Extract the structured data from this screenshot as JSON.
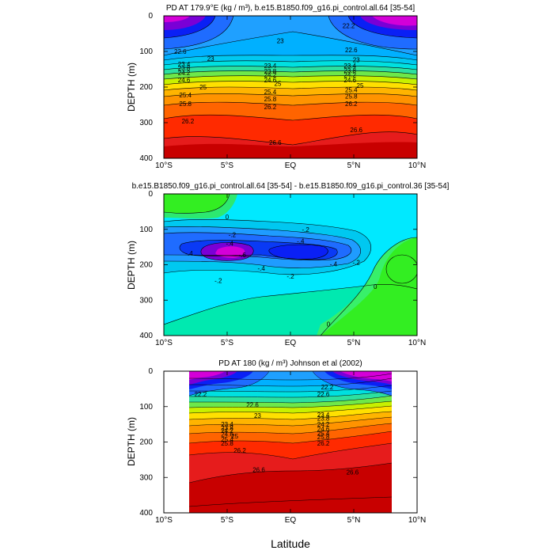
{
  "figure": {
    "xlabel": "Latitude",
    "colors": {
      "violet": "#7a00d6",
      "magenta": "#d400d8",
      "blue_dark": "#0a20f5",
      "blue": "#1f6cff",
      "cyan": "#00e9ff",
      "orange": "#ff9300",
      "red": "#e61c1c",
      "dark_red": "#c80000",
      "green": "#33ee22"
    }
  },
  "chart_data": [
    {
      "type": "contour",
      "title": "PD AT 179.9°E (kg / m³), b.e15.B1850.f09_g16.pi_control.all.64 [35-54]",
      "xlabel": "",
      "ylabel": "DEPTH (m)",
      "x_ticks": [
        "10°S",
        "5°S",
        "EQ",
        "5°N",
        "10°N"
      ],
      "x_tick_values": [
        -10,
        -5,
        0,
        5,
        10
      ],
      "y_ticks": [
        "0",
        "100",
        "200",
        "300",
        "400"
      ],
      "y_tick_values": [
        0,
        100,
        200,
        300,
        400
      ],
      "xlim": [
        -10,
        10
      ],
      "ylim": [
        400,
        0
      ],
      "x_data_extent": [
        -10,
        10
      ],
      "contour_labels": [
        {
          "text": "23",
          "x": -0.8,
          "y": 70
        },
        {
          "text": "22.6",
          "x": -8.7,
          "y": 100
        },
        {
          "text": "23",
          "x": -6.3,
          "y": 120
        },
        {
          "text": "23.4",
          "x": -8.4,
          "y": 135
        },
        {
          "text": "23.8",
          "x": -8.4,
          "y": 147
        },
        {
          "text": "24.2",
          "x": -8.4,
          "y": 160
        },
        {
          "text": "24.6",
          "x": -8.4,
          "y": 180
        },
        {
          "text": "25",
          "x": -6.9,
          "y": 200
        },
        {
          "text": "25.4",
          "x": -8.3,
          "y": 222
        },
        {
          "text": "25.8",
          "x": -8.3,
          "y": 247
        },
        {
          "text": "26.2",
          "x": -8.1,
          "y": 295
        },
        {
          "text": "23.4",
          "x": -1.6,
          "y": 140
        },
        {
          "text": "23.8",
          "x": -1.6,
          "y": 155
        },
        {
          "text": "24.2",
          "x": -1.6,
          "y": 165
        },
        {
          "text": "24.6",
          "x": -1.6,
          "y": 180
        },
        {
          "text": "25",
          "x": -1.0,
          "y": 190
        },
        {
          "text": "25.4",
          "x": -1.6,
          "y": 213
        },
        {
          "text": "25.8",
          "x": -1.6,
          "y": 233
        },
        {
          "text": "26.2",
          "x": -1.6,
          "y": 255
        },
        {
          "text": "26.6",
          "x": -1.2,
          "y": 355
        },
        {
          "text": "22.6",
          "x": 4.8,
          "y": 95
        },
        {
          "text": "23",
          "x": 5.2,
          "y": 123
        },
        {
          "text": "23.4",
          "x": 4.7,
          "y": 140
        },
        {
          "text": "23.8",
          "x": 4.7,
          "y": 153
        },
        {
          "text": "24.2",
          "x": 4.7,
          "y": 165
        },
        {
          "text": "24.6",
          "x": 4.7,
          "y": 180
        },
        {
          "text": "25",
          "x": 5.5,
          "y": 195
        },
        {
          "text": "25.4",
          "x": 4.8,
          "y": 208
        },
        {
          "text": "25.8",
          "x": 4.8,
          "y": 225
        },
        {
          "text": "26.2",
          "x": 4.8,
          "y": 247
        },
        {
          "text": "26.6",
          "x": 5.2,
          "y": 320
        },
        {
          "text": "22.2",
          "x": 4.6,
          "y": 28
        }
      ]
    },
    {
      "type": "contour",
      "title": "b.e15.B1850.f09_g16.pi_control.all.64 [35-54] - b.e15.B1850.f09_g16.pi_control.36 [35-54]",
      "xlabel": "",
      "ylabel": "DEPTH (m)",
      "x_ticks": [
        "10°S",
        "5°S",
        "EQ",
        "5°N",
        "10°N"
      ],
      "x_tick_values": [
        -10,
        -5,
        0,
        5,
        10
      ],
      "y_ticks": [
        "0",
        "100",
        "200",
        "300",
        "400"
      ],
      "y_tick_values": [
        0,
        100,
        200,
        300,
        400
      ],
      "xlim": [
        -10,
        10
      ],
      "ylim": [
        400,
        0
      ],
      "x_data_extent": [
        -10,
        10
      ],
      "contour_labels": [
        {
          "text": "0",
          "x": -5.0,
          "y": 65
        },
        {
          "text": "-.2",
          "x": -4.6,
          "y": 115
        },
        {
          "text": "-.2",
          "x": 1.2,
          "y": 100
        },
        {
          "text": "-.4",
          "x": -4.8,
          "y": 140
        },
        {
          "text": "-.4",
          "x": 0.8,
          "y": 133
        },
        {
          "text": "-.6",
          "x": -3.8,
          "y": 172
        },
        {
          "text": "-.4",
          "x": -8.0,
          "y": 168
        },
        {
          "text": "-.4",
          "x": -2.3,
          "y": 210
        },
        {
          "text": "-.4",
          "x": 3.4,
          "y": 198
        },
        {
          "text": "-.2",
          "x": 5.2,
          "y": 193
        },
        {
          "text": "-.2",
          "x": -5.7,
          "y": 245
        },
        {
          "text": "-.2",
          "x": 0.0,
          "y": 232
        },
        {
          "text": "0",
          "x": 6.7,
          "y": 262
        },
        {
          "text": "0",
          "x": 3.0,
          "y": 368
        }
      ]
    },
    {
      "type": "contour",
      "title": "PD AT 180 (kg / m³) Johnson et al (2002)",
      "xlabel": "",
      "ylabel": "DEPTH (m)",
      "x_ticks": [
        "10°S",
        "5°S",
        "EQ",
        "5°N",
        "10°N"
      ],
      "x_tick_values": [
        -10,
        -5,
        0,
        5,
        10
      ],
      "y_ticks": [
        "0",
        "100",
        "200",
        "300",
        "400"
      ],
      "y_tick_values": [
        0,
        100,
        200,
        300,
        400
      ],
      "xlim": [
        -10,
        10
      ],
      "ylim": [
        400,
        0
      ],
      "x_data_extent": [
        -8,
        8
      ],
      "contour_labels": [
        {
          "text": "22.2",
          "x": -7.1,
          "y": 65
        },
        {
          "text": "22.6",
          "x": -3.0,
          "y": 95
        },
        {
          "text": "23",
          "x": -2.6,
          "y": 125
        },
        {
          "text": "23.4",
          "x": -5.0,
          "y": 150
        },
        {
          "text": "23.8",
          "x": -5.0,
          "y": 160
        },
        {
          "text": "24.2",
          "x": -5.0,
          "y": 168
        },
        {
          "text": "24.6",
          "x": -5.0,
          "y": 178
        },
        {
          "text": "25",
          "x": -4.4,
          "y": 183
        },
        {
          "text": "25.4",
          "x": -5.0,
          "y": 192
        },
        {
          "text": "25.8",
          "x": -5.0,
          "y": 203
        },
        {
          "text": "26.2",
          "x": -4.0,
          "y": 223
        },
        {
          "text": "26.6",
          "x": -2.5,
          "y": 278
        },
        {
          "text": "22.2",
          "x": 2.9,
          "y": 45
        },
        {
          "text": "22.6",
          "x": 2.6,
          "y": 65
        },
        {
          "text": "23.4",
          "x": 2.6,
          "y": 123
        },
        {
          "text": "23.8",
          "x": 2.6,
          "y": 133
        },
        {
          "text": "24.2",
          "x": 2.6,
          "y": 150
        },
        {
          "text": "24.6",
          "x": 2.6,
          "y": 163
        },
        {
          "text": "25.4",
          "x": 2.6,
          "y": 175
        },
        {
          "text": "25.8",
          "x": 2.6,
          "y": 185
        },
        {
          "text": "26.2",
          "x": 2.6,
          "y": 203
        },
        {
          "text": "26.6",
          "x": 4.9,
          "y": 285
        }
      ]
    }
  ]
}
